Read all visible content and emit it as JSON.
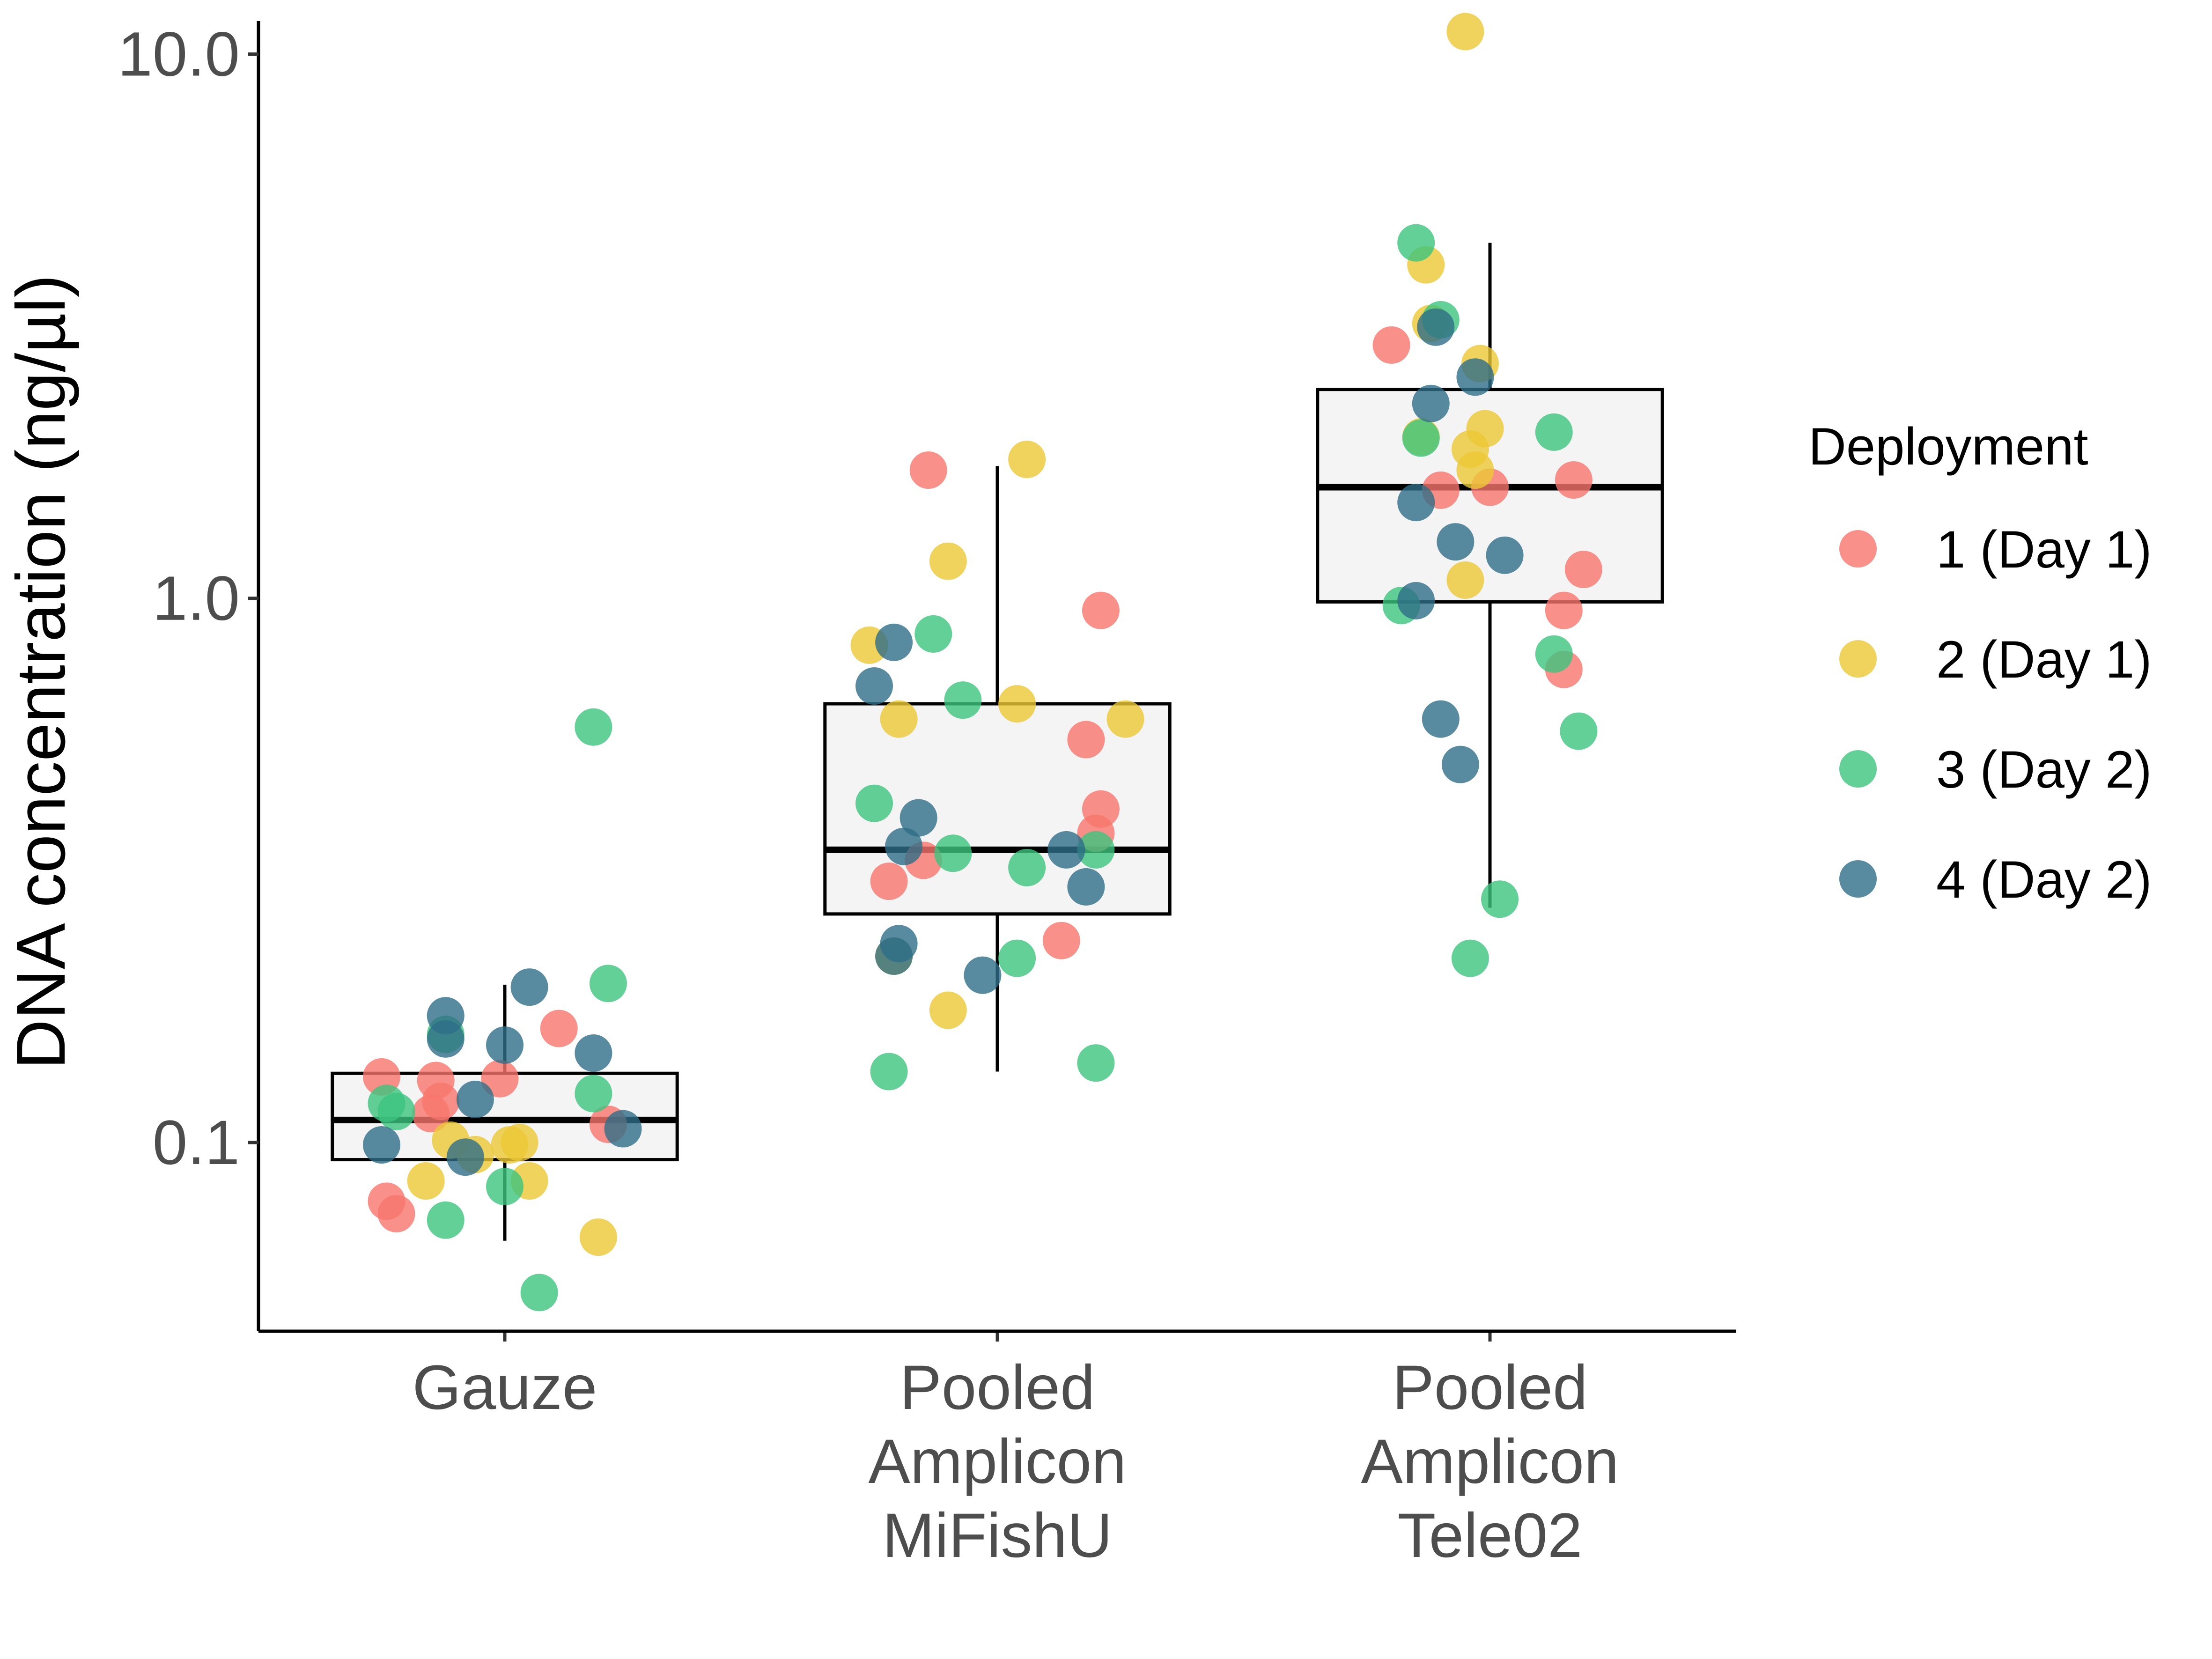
{
  "chart_data": {
    "type": "box",
    "ylabel": "DNA concentration (ng/µl)",
    "xlabel": "",
    "y_scale": "log10",
    "ylim": [
      0.045,
      11.5
    ],
    "y_ticks": [
      {
        "value": 0.1,
        "label": "0.1"
      },
      {
        "value": 1.0,
        "label": "1.0"
      },
      {
        "value": 10.0,
        "label": "10.0"
      }
    ],
    "grid": false,
    "legend": {
      "title": "Deployment",
      "position": "right",
      "entries": [
        {
          "key": "1",
          "label": "1 (Day 1)",
          "color": "#F8766D"
        },
        {
          "key": "2",
          "label": "2 (Day 1)",
          "color": "#ECC834"
        },
        {
          "key": "3",
          "label": "3 (Day 2)",
          "color": "#3CC47E"
        },
        {
          "key": "4",
          "label": "4 (Day 2)",
          "color": "#2E6E87"
        }
      ]
    },
    "groups": [
      {
        "category_lines": [
          "Gauze"
        ],
        "box": {
          "whisker_low": 0.066,
          "q1": 0.093,
          "median": 0.11,
          "q3": 0.134,
          "whisker_high": 0.195
        },
        "points": [
          {
            "d": "1",
            "y": 0.132,
            "jx": -0.25
          },
          {
            "d": "1",
            "y": 0.13,
            "jx": -0.14
          },
          {
            "d": "1",
            "y": 0.131,
            "jx": -0.01
          },
          {
            "d": "1",
            "y": 0.119,
            "jx": -0.13
          },
          {
            "d": "1",
            "y": 0.113,
            "jx": -0.15
          },
          {
            "d": "1",
            "y": 0.162,
            "jx": 0.11
          },
          {
            "d": "1",
            "y": 0.108,
            "jx": 0.21
          },
          {
            "d": "1",
            "y": 0.078,
            "jx": -0.24
          },
          {
            "d": "1",
            "y": 0.074,
            "jx": -0.22
          },
          {
            "d": "2",
            "y": 0.101,
            "jx": -0.11
          },
          {
            "d": "2",
            "y": 0.099,
            "jx": 0.01
          },
          {
            "d": "2",
            "y": 0.1,
            "jx": 0.03
          },
          {
            "d": "2",
            "y": 0.095,
            "jx": -0.06
          },
          {
            "d": "2",
            "y": 0.085,
            "jx": -0.16
          },
          {
            "d": "2",
            "y": 0.085,
            "jx": 0.05
          },
          {
            "d": "2",
            "y": 0.067,
            "jx": 0.19
          },
          {
            "d": "3",
            "y": 0.58,
            "jx": 0.18
          },
          {
            "d": "3",
            "y": 0.196,
            "jx": 0.21
          },
          {
            "d": "3",
            "y": 0.158,
            "jx": -0.12
          },
          {
            "d": "3",
            "y": 0.123,
            "jx": 0.18
          },
          {
            "d": "3",
            "y": 0.118,
            "jx": -0.24
          },
          {
            "d": "3",
            "y": 0.114,
            "jx": -0.22
          },
          {
            "d": "3",
            "y": 0.083,
            "jx": 0.0
          },
          {
            "d": "3",
            "y": 0.072,
            "jx": -0.12
          },
          {
            "d": "3",
            "y": 0.053,
            "jx": 0.07
          },
          {
            "d": "4",
            "y": 0.193,
            "jx": 0.05
          },
          {
            "d": "4",
            "y": 0.171,
            "jx": -0.12
          },
          {
            "d": "4",
            "y": 0.155,
            "jx": -0.12
          },
          {
            "d": "4",
            "y": 0.151,
            "jx": 0.0
          },
          {
            "d": "4",
            "y": 0.146,
            "jx": 0.18
          },
          {
            "d": "4",
            "y": 0.12,
            "jx": -0.06
          },
          {
            "d": "4",
            "y": 0.106,
            "jx": 0.24
          },
          {
            "d": "4",
            "y": 0.099,
            "jx": -0.25
          },
          {
            "d": "4",
            "y": 0.094,
            "jx": -0.08
          }
        ]
      },
      {
        "category_lines": [
          "Pooled",
          "Amplicon",
          "MiFishU"
        ],
        "box": {
          "whisker_low": 0.135,
          "q1": 0.263,
          "median": 0.345,
          "q3": 0.64,
          "whisker_high": 1.75
        },
        "points": [
          {
            "d": "1",
            "y": 1.72,
            "jx": -0.14
          },
          {
            "d": "1",
            "y": 0.95,
            "jx": 0.21
          },
          {
            "d": "1",
            "y": 0.55,
            "jx": 0.18
          },
          {
            "d": "1",
            "y": 0.41,
            "jx": 0.21
          },
          {
            "d": "1",
            "y": 0.37,
            "jx": 0.2
          },
          {
            "d": "1",
            "y": 0.33,
            "jx": -0.15
          },
          {
            "d": "1",
            "y": 0.302,
            "jx": -0.22
          },
          {
            "d": "1",
            "y": 0.235,
            "jx": 0.13
          },
          {
            "d": "2",
            "y": 1.8,
            "jx": 0.06
          },
          {
            "d": "2",
            "y": 1.17,
            "jx": -0.1
          },
          {
            "d": "2",
            "y": 0.82,
            "jx": -0.26
          },
          {
            "d": "2",
            "y": 0.64,
            "jx": 0.04
          },
          {
            "d": "2",
            "y": 0.6,
            "jx": -0.2
          },
          {
            "d": "2",
            "y": 0.6,
            "jx": 0.26
          },
          {
            "d": "2",
            "y": 0.22,
            "jx": -0.21
          },
          {
            "d": "2",
            "y": 0.175,
            "jx": -0.1
          },
          {
            "d": "3",
            "y": 0.86,
            "jx": -0.13
          },
          {
            "d": "3",
            "y": 0.65,
            "jx": -0.07
          },
          {
            "d": "3",
            "y": 0.42,
            "jx": -0.25
          },
          {
            "d": "3",
            "y": 0.34,
            "jx": -0.09
          },
          {
            "d": "3",
            "y": 0.345,
            "jx": 0.2
          },
          {
            "d": "3",
            "y": 0.32,
            "jx": 0.06
          },
          {
            "d": "3",
            "y": 0.218,
            "jx": 0.04
          },
          {
            "d": "3",
            "y": 0.14,
            "jx": 0.2
          },
          {
            "d": "3",
            "y": 0.135,
            "jx": -0.22
          },
          {
            "d": "4",
            "y": 0.83,
            "jx": -0.21
          },
          {
            "d": "4",
            "y": 0.69,
            "jx": -0.25
          },
          {
            "d": "4",
            "y": 0.395,
            "jx": -0.16
          },
          {
            "d": "4",
            "y": 0.35,
            "jx": -0.19
          },
          {
            "d": "4",
            "y": 0.345,
            "jx": 0.14
          },
          {
            "d": "4",
            "y": 0.295,
            "jx": 0.18
          },
          {
            "d": "4",
            "y": 0.232,
            "jx": -0.2
          },
          {
            "d": "4",
            "y": 0.22,
            "jx": -0.21
          },
          {
            "d": "4",
            "y": 0.203,
            "jx": -0.03
          }
        ]
      },
      {
        "category_lines": [
          "Pooled",
          "Amplicon",
          "Tele02"
        ],
        "box": {
          "whisker_low": 0.27,
          "q1": 0.985,
          "median": 1.6,
          "q3": 2.42,
          "whisker_high": 4.5
        },
        "points": [
          {
            "d": "1",
            "y": 2.92,
            "jx": -0.2
          },
          {
            "d": "1",
            "y": 1.58,
            "jx": -0.1
          },
          {
            "d": "1",
            "y": 1.6,
            "jx": 0.0
          },
          {
            "d": "1",
            "y": 1.65,
            "jx": 0.17
          },
          {
            "d": "1",
            "y": 1.13,
            "jx": 0.19
          },
          {
            "d": "1",
            "y": 0.95,
            "jx": 0.15
          },
          {
            "d": "1",
            "y": 0.74,
            "jx": 0.15
          },
          {
            "d": "2",
            "y": 11.0,
            "jx": -0.05
          },
          {
            "d": "2",
            "y": 4.1,
            "jx": -0.13
          },
          {
            "d": "2",
            "y": 3.2,
            "jx": -0.12
          },
          {
            "d": "2",
            "y": 2.7,
            "jx": -0.02
          },
          {
            "d": "2",
            "y": 2.05,
            "jx": -0.01
          },
          {
            "d": "2",
            "y": 1.98,
            "jx": -0.14
          },
          {
            "d": "2",
            "y": 1.88,
            "jx": -0.04
          },
          {
            "d": "2",
            "y": 1.72,
            "jx": -0.03
          },
          {
            "d": "2",
            "y": 1.08,
            "jx": -0.05
          },
          {
            "d": "3",
            "y": 4.5,
            "jx": -0.15
          },
          {
            "d": "3",
            "y": 3.25,
            "jx": -0.1
          },
          {
            "d": "3",
            "y": 2.02,
            "jx": 0.13
          },
          {
            "d": "3",
            "y": 1.97,
            "jx": -0.14
          },
          {
            "d": "3",
            "y": 0.97,
            "jx": -0.18
          },
          {
            "d": "3",
            "y": 0.79,
            "jx": 0.13
          },
          {
            "d": "3",
            "y": 0.57,
            "jx": 0.18
          },
          {
            "d": "3",
            "y": 0.28,
            "jx": 0.02
          },
          {
            "d": "3",
            "y": 0.218,
            "jx": -0.04
          },
          {
            "d": "4",
            "y": 3.15,
            "jx": -0.11
          },
          {
            "d": "4",
            "y": 2.55,
            "jx": -0.03
          },
          {
            "d": "4",
            "y": 2.28,
            "jx": -0.12
          },
          {
            "d": "4",
            "y": 1.5,
            "jx": -0.15
          },
          {
            "d": "4",
            "y": 1.27,
            "jx": -0.07
          },
          {
            "d": "4",
            "y": 1.2,
            "jx": 0.03
          },
          {
            "d": "4",
            "y": 0.99,
            "jx": -0.15
          },
          {
            "d": "4",
            "y": 0.6,
            "jx": -0.1
          },
          {
            "d": "4",
            "y": 0.495,
            "jx": -0.06
          }
        ]
      }
    ]
  }
}
